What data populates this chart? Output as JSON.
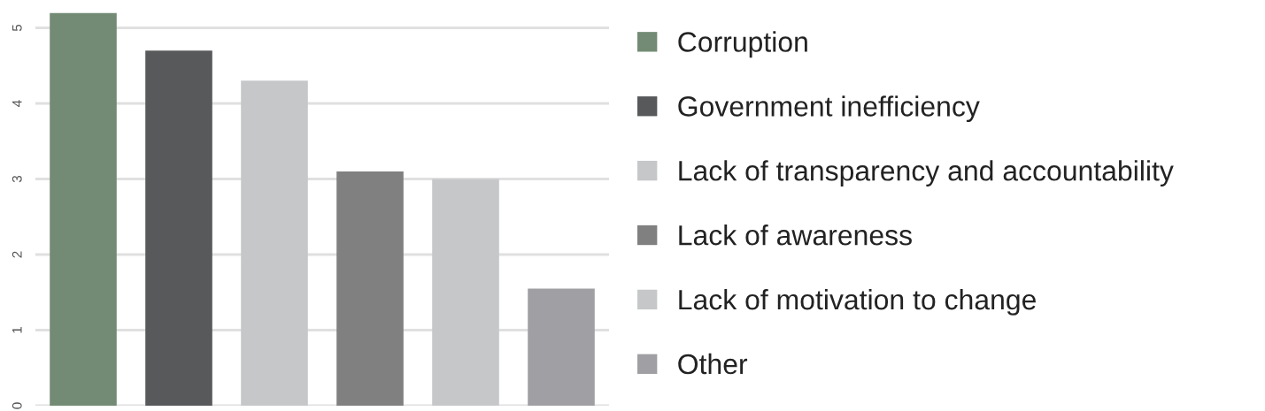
{
  "chart_data": {
    "type": "bar",
    "categories": [
      null,
      null,
      null,
      null,
      null,
      null
    ],
    "series": [
      {
        "name": "Corruption",
        "color": "#738b74",
        "values": [
          5.2,
          null,
          null,
          null,
          null,
          null
        ]
      },
      {
        "name": "Government inefficiency",
        "color": "#58595b",
        "values": [
          null,
          4.7,
          null,
          null,
          null,
          null
        ]
      },
      {
        "name": "Lack of transparency and accountability",
        "color": "#c6c7c9",
        "values": [
          null,
          null,
          4.3,
          null,
          null,
          null
        ]
      },
      {
        "name": "Lack of awareness",
        "color": "#808080",
        "values": [
          null,
          null,
          null,
          3.1,
          null,
          null
        ]
      },
      {
        "name": "Lack of motivation to change",
        "color": "#c6c7c9",
        "values": [
          null,
          null,
          null,
          null,
          3.0,
          null
        ]
      },
      {
        "name": "Other",
        "color": "#a0a0a4",
        "values": [
          null,
          null,
          null,
          null,
          null,
          1.55
        ]
      }
    ],
    "ylim": [
      0,
      5.2
    ],
    "yticks": [
      0,
      1,
      2,
      3,
      4,
      5
    ],
    "grid": "y",
    "legend": "right",
    "tick_labels": "y"
  }
}
